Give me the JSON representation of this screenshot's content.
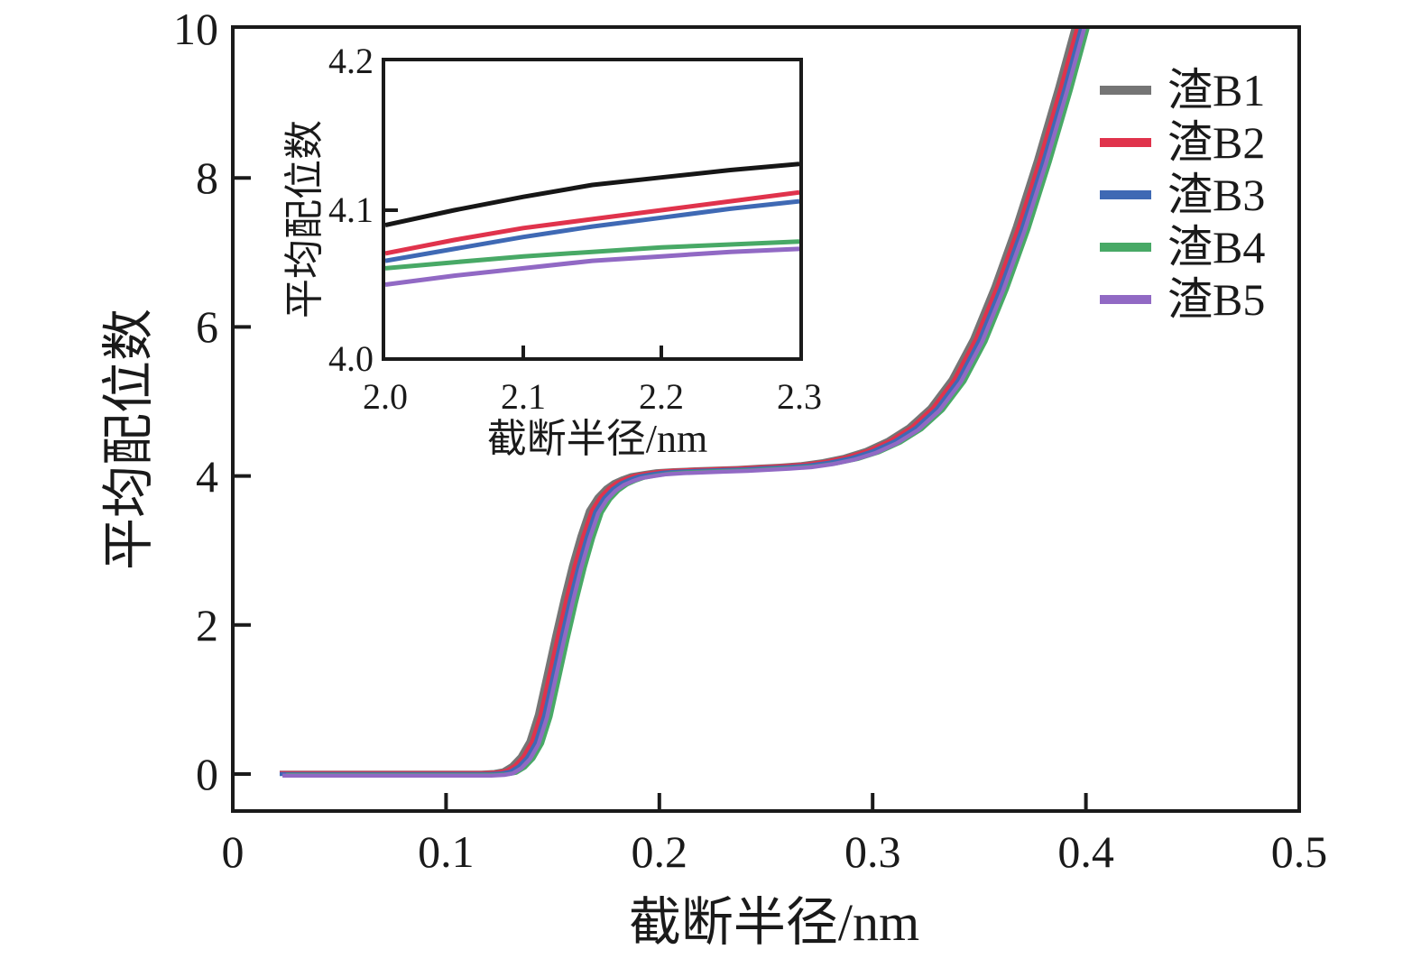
{
  "chart_data": {
    "type": "line",
    "description": "Average coordination number vs cutoff radius for five slag samples, with zoomed inset",
    "main": {
      "xlabel": "截断半径/nm",
      "ylabel": "平均配位数",
      "xlim": [
        0,
        0.5
      ],
      "ylim": [
        0,
        10
      ],
      "grid": false,
      "xtick_labels": [
        "0",
        "0.1",
        "0.2",
        "0.3",
        "0.4",
        "0.5"
      ],
      "xtick_values": [
        0,
        0.1,
        0.2,
        0.3,
        0.4,
        0.5
      ],
      "ytick_labels": [
        "0",
        "2",
        "4",
        "6",
        "8",
        "10"
      ],
      "ytick_values": [
        0,
        2,
        4,
        6,
        8,
        10
      ],
      "x": [
        0.022,
        0.06,
        0.1,
        0.12,
        0.126,
        0.13,
        0.134,
        0.138,
        0.142,
        0.146,
        0.15,
        0.154,
        0.158,
        0.162,
        0.166,
        0.17,
        0.174,
        0.178,
        0.182,
        0.186,
        0.19,
        0.196,
        0.202,
        0.21,
        0.22,
        0.23,
        0.24,
        0.25,
        0.26,
        0.27,
        0.28,
        0.29,
        0.3,
        0.31,
        0.32,
        0.33,
        0.34,
        0.35,
        0.36,
        0.37,
        0.38,
        0.39,
        0.4,
        0.408
      ],
      "base_y": [
        0,
        0,
        0,
        0,
        0.01,
        0.03,
        0.1,
        0.22,
        0.42,
        0.78,
        1.3,
        1.82,
        2.32,
        2.78,
        3.18,
        3.52,
        3.7,
        3.82,
        3.9,
        3.95,
        3.99,
        4.02,
        4.045,
        4.06,
        4.07,
        4.08,
        4.09,
        4.105,
        4.12,
        4.14,
        4.18,
        4.24,
        4.33,
        4.46,
        4.64,
        4.9,
        5.28,
        5.82,
        6.52,
        7.32,
        8.22,
        9.2,
        10.25,
        11.1
      ],
      "series": [
        {
          "name": "渣B1",
          "color": "#757575",
          "dx": -0.0034,
          "dy": 0.018
        },
        {
          "name": "渣B2",
          "color": "#e0334c",
          "dx": -0.0017,
          "dy": 0.013
        },
        {
          "name": "渣B3",
          "color": "#3f69b4",
          "dx": 0.0,
          "dy": 0.0
        },
        {
          "name": "渣B4",
          "color": "#48a966",
          "dx": 0.003,
          "dy": -0.012
        },
        {
          "name": "渣B5",
          "color": "#9169c4",
          "dx": 0.0013,
          "dy": -0.022
        }
      ]
    },
    "inset": {
      "xlabel": "截断半径/nm",
      "ylabel": "平均配位数",
      "xlim": [
        2.0,
        2.3
      ],
      "ylim": [
        4.0,
        4.2
      ],
      "grid": false,
      "xtick_labels": [
        "2.0",
        "2.1",
        "2.2",
        "2.3"
      ],
      "xtick_values": [
        2.0,
        2.1,
        2.2,
        2.3
      ],
      "ytick_labels": [
        "4.0",
        "4.1",
        "4.2"
      ],
      "ytick_values": [
        4.0,
        4.1,
        4.2
      ],
      "x": [
        2.0,
        2.05,
        2.1,
        2.15,
        2.2,
        2.25,
        2.3
      ],
      "series": [
        {
          "name": "渣B1",
          "color": "#161616",
          "y": [
            4.09,
            4.1,
            4.109,
            4.117,
            4.122,
            4.127,
            4.131
          ]
        },
        {
          "name": "渣B2",
          "color": "#e0334c",
          "y": [
            4.071,
            4.08,
            4.088,
            4.094,
            4.1,
            4.106,
            4.112
          ]
        },
        {
          "name": "渣B3",
          "color": "#3f69b4",
          "y": [
            4.066,
            4.074,
            4.082,
            4.089,
            4.095,
            4.101,
            4.106
          ]
        },
        {
          "name": "渣B4",
          "color": "#48a966",
          "y": [
            4.061,
            4.065,
            4.069,
            4.072,
            4.075,
            4.077,
            4.079
          ]
        },
        {
          "name": "渣B5",
          "color": "#9169c4",
          "y": [
            4.05,
            4.056,
            4.061,
            4.066,
            4.069,
            4.072,
            4.074
          ]
        }
      ]
    },
    "legend": {
      "position": "upper right",
      "entries": [
        {
          "label": "渣B1",
          "color": "#757575"
        },
        {
          "label": "渣B2",
          "color": "#e0334c"
        },
        {
          "label": "渣B3",
          "color": "#3f69b4"
        },
        {
          "label": "渣B4",
          "color": "#48a966"
        },
        {
          "label": "渣B5",
          "color": "#9169c4"
        }
      ]
    },
    "style": {
      "axis_color": "#1a1a1a",
      "background": "#ffffff",
      "main_linewidth": 4.5,
      "inset_linewidth": 5
    }
  }
}
